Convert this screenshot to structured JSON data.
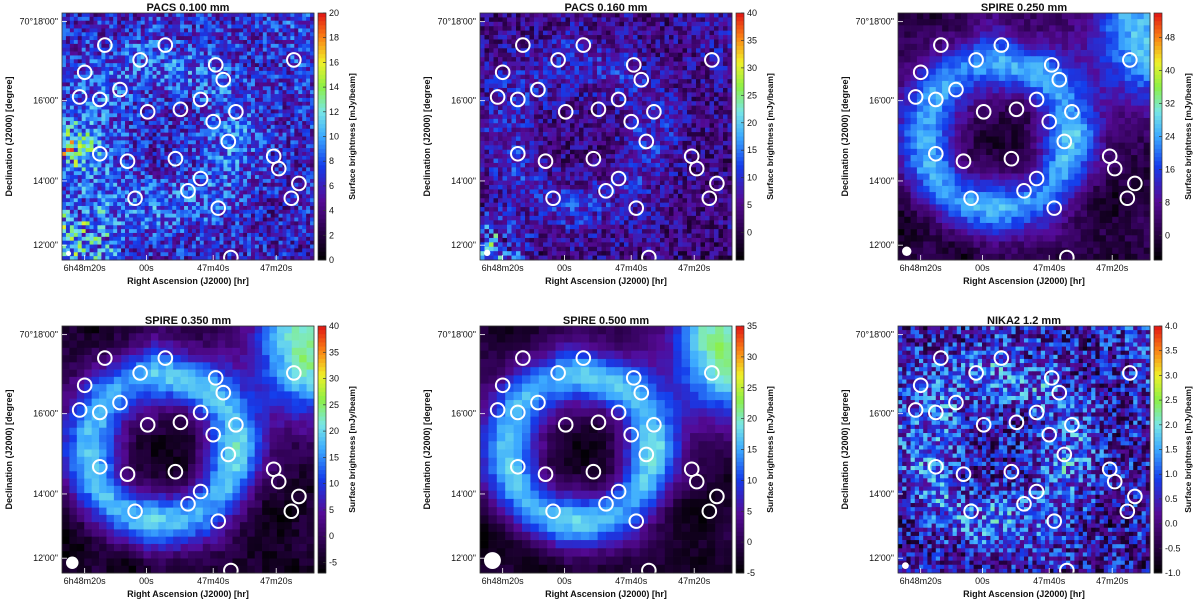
{
  "figure": {
    "x_axis_label": "Right Ascension (J2000) [hr]",
    "y_axis_label": "Declination (J2000) [degree]",
    "colorbar_label": "Surface brightness [mJy/beam]"
  },
  "chart_data": [
    {
      "type": "heatmap",
      "title": "PACS 0.100 mm",
      "xlabel": "Right Ascension (J2000) [hr]",
      "ylabel": "Declination (J2000) [degree]",
      "x_ticks": [
        "6h48m20s",
        "00s",
        "47m40s",
        "47m20s"
      ],
      "y_ticks": [
        "70°18'00\"",
        "16'00\"",
        "14'00\"",
        "12'00\""
      ],
      "colorbar": {
        "label": "Surface brightness [mJy/beam]",
        "min": 0,
        "max": 20,
        "ticks": [
          0,
          2,
          4,
          6,
          8,
          10,
          12,
          14,
          16,
          18,
          20
        ]
      },
      "beam_relative_size": 0.6
    },
    {
      "type": "heatmap",
      "title": "PACS 0.160 mm",
      "xlabel": "Right Ascension (J2000) [hr]",
      "ylabel": "Declination (J2000) [degree]",
      "x_ticks": [
        "6h48m20s",
        "00s",
        "47m40s",
        "47m20s"
      ],
      "y_ticks": [
        "70°18'00\"",
        "16'00\"",
        "14'00\"",
        "12'00\""
      ],
      "colorbar": {
        "label": "Surface brightness [mJy/beam]",
        "min": -5,
        "max": 40,
        "ticks": [
          0,
          5,
          10,
          15,
          20,
          25,
          30,
          35,
          40
        ]
      },
      "beam_relative_size": 0.9
    },
    {
      "type": "heatmap",
      "title": "SPIRE 0.250 mm",
      "xlabel": "Right Ascension (J2000) [hr]",
      "ylabel": "Declination (J2000) [degree]",
      "x_ticks": [
        "6h48m20s",
        "00s",
        "47m40s",
        "47m20s"
      ],
      "y_ticks": [
        "70°18'00\"",
        "16'00\"",
        "14'00\"",
        "12'00\""
      ],
      "colorbar": {
        "label": "Surface brightness [mJy/beam]",
        "min": -6,
        "max": 54,
        "ticks": [
          0,
          8,
          16,
          24,
          32,
          40,
          48
        ]
      },
      "beam_relative_size": 1.6
    },
    {
      "type": "heatmap",
      "title": "SPIRE 0.350 mm",
      "xlabel": "Right Ascension (J2000) [hr]",
      "ylabel": "Declination (J2000) [degree]",
      "x_ticks": [
        "6h48m20s",
        "00s",
        "47m40s",
        "47m20s"
      ],
      "y_ticks": [
        "70°18'00\"",
        "16'00\"",
        "14'00\"",
        "12'00\""
      ],
      "colorbar": {
        "label": "Surface brightness [mJy/beam]",
        "min": -7,
        "max": 40,
        "ticks": [
          -5,
          0,
          5,
          10,
          15,
          20,
          25,
          30,
          35,
          40
        ]
      },
      "beam_relative_size": 2.3
    },
    {
      "type": "heatmap",
      "title": "SPIRE 0.500 mm",
      "xlabel": "Right Ascension (J2000) [hr]",
      "ylabel": "Declination (J2000) [degree]",
      "x_ticks": [
        "6h48m20s",
        "00s",
        "47m40s",
        "47m20s"
      ],
      "y_ticks": [
        "70°18'00\"",
        "16'00\"",
        "14'00\"",
        "12'00\""
      ],
      "colorbar": {
        "label": "Surface brightness [mJy/beam]",
        "min": -5,
        "max": 35,
        "ticks": [
          -5,
          0,
          5,
          10,
          15,
          20,
          25,
          30,
          35
        ]
      },
      "beam_relative_size": 3.3
    },
    {
      "type": "heatmap",
      "title": "NIKA2 1.2 mm",
      "xlabel": "Right Ascension (J2000) [hr]",
      "ylabel": "Declination (J2000) [degree]",
      "x_ticks": [
        "6h48m20s",
        "00s",
        "47m40s",
        "47m20s"
      ],
      "y_ticks": [
        "70°18'00\"",
        "16'00\"",
        "14'00\"",
        "12'00\""
      ],
      "colorbar": {
        "label": "Surface brightness [mJy/beam]",
        "min": -1.0,
        "max": 4.0,
        "ticks": [
          -1.0,
          -0.5,
          0.0,
          0.5,
          1.0,
          1.5,
          2.0,
          2.5,
          3.0,
          3.5,
          4.0
        ]
      },
      "beam_relative_size": 1.0
    }
  ]
}
